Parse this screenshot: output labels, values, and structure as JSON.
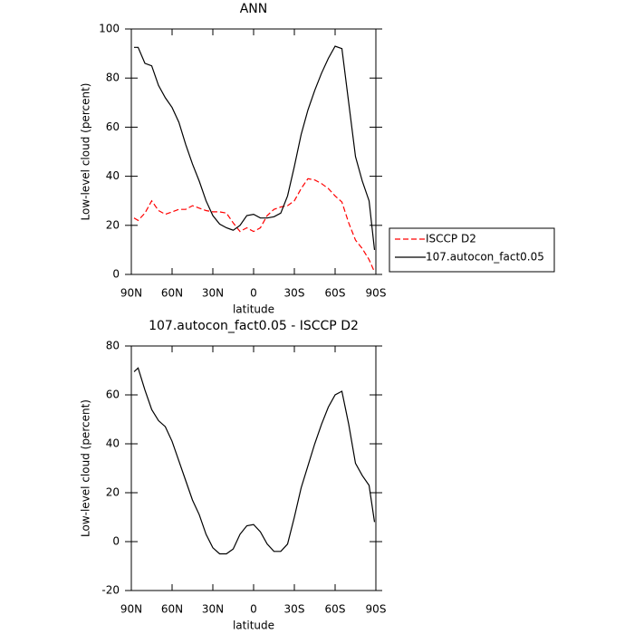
{
  "chart_data": [
    {
      "type": "line",
      "title": "ANN",
      "x_label": "latitude",
      "y_label": "Low-level cloud (percent)",
      "x": [
        88,
        85,
        80,
        75,
        70,
        65,
        60,
        55,
        50,
        45,
        40,
        35,
        30,
        25,
        20,
        15,
        10,
        5,
        0,
        -5,
        -10,
        -15,
        -20,
        -25,
        -30,
        -35,
        -40,
        -45,
        -50,
        -55,
        -60,
        -65,
        -70,
        -75,
        -80,
        -85,
        -89
      ],
      "series": [
        {
          "name": "ISCCP D2",
          "color": "#ff0000",
          "dashed": true,
          "values": [
            23,
            22,
            25,
            30,
            26,
            24.5,
            25.5,
            26.5,
            26.5,
            28,
            27,
            26,
            25.5,
            25.5,
            25,
            21,
            17.5,
            19,
            17.5,
            19,
            24,
            26.5,
            27.5,
            28,
            30,
            35,
            39,
            38.5,
            37,
            35,
            32,
            29.5,
            21,
            14,
            10.5,
            6,
            1
          ]
        },
        {
          "name": "107.autocon_fact0.05",
          "color": "#000000",
          "dashed": false,
          "values": [
            92.5,
            92.5,
            86,
            85,
            77,
            72,
            68,
            62,
            53,
            45,
            38,
            30,
            24,
            20.5,
            19,
            18,
            20,
            24,
            24.5,
            23,
            23,
            23.5,
            25,
            32,
            44,
            57,
            67,
            75,
            82,
            88,
            93,
            92,
            70,
            48,
            38,
            30,
            10
          ]
        }
      ],
      "xlim": [
        90,
        -90
      ],
      "xticks": [
        {
          "value": 90,
          "label": "90N"
        },
        {
          "value": 60,
          "label": "60N"
        },
        {
          "value": 30,
          "label": "30N"
        },
        0,
        {
          "value": -30,
          "label": "30S"
        },
        {
          "value": -60,
          "label": "60S"
        },
        {
          "value": -90,
          "label": "90S"
        }
      ],
      "ylim": [
        0,
        100
      ],
      "yticks": [
        0,
        20,
        40,
        60,
        80,
        100
      ],
      "legend": "right"
    },
    {
      "type": "line",
      "title": "107.autocon_fact0.05 - ISCCP D2",
      "x_label": "latitude",
      "y_label": "Low-level cloud (percent)",
      "x": [
        88,
        85,
        80,
        75,
        70,
        65,
        60,
        55,
        50,
        45,
        40,
        35,
        30,
        25,
        20,
        15,
        10,
        5,
        0,
        -5,
        -10,
        -15,
        -20,
        -25,
        -30,
        -35,
        -40,
        -45,
        -50,
        -55,
        -60,
        -65,
        -70,
        -75,
        -80,
        -85,
        -89
      ],
      "values": [
        69.5,
        71,
        62,
        54,
        49.5,
        47,
        41,
        33,
        25,
        17,
        11,
        3,
        -2.5,
        -5,
        -5,
        -3,
        3,
        6.5,
        7,
        4,
        -1,
        -4,
        -4,
        -1,
        10,
        22,
        31,
        40,
        48,
        55,
        60,
        61.5,
        48,
        32,
        27,
        23,
        8
      ],
      "color": "#000000",
      "xlim": [
        90,
        -90
      ],
      "xticks": [
        {
          "value": 90,
          "label": "90N"
        },
        {
          "value": 60,
          "label": "60N"
        },
        {
          "value": 30,
          "label": "30N"
        },
        0,
        {
          "value": -30,
          "label": "30S"
        },
        {
          "value": -60,
          "label": "60S"
        },
        {
          "value": -90,
          "label": "90S"
        }
      ],
      "ylim": [
        -20,
        80
      ],
      "yticks": [
        -20,
        0,
        20,
        40,
        60,
        80
      ]
    }
  ]
}
